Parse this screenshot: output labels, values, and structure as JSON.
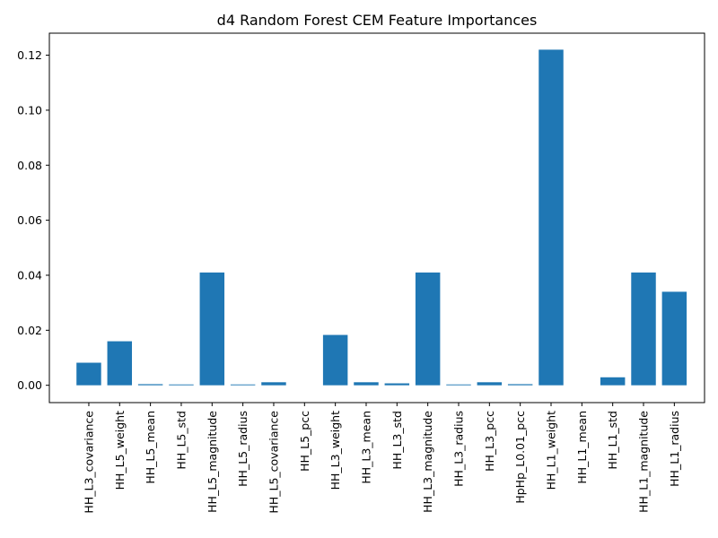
{
  "chart_data": {
    "type": "bar",
    "title": "d4 Random Forest CEM Feature Importances",
    "xlabel": "",
    "ylabel": "",
    "categories": [
      "HH_L3_covariance",
      "HH_L5_weight",
      "HH_L5_mean",
      "HH_L5_std",
      "HH_L5_magnitude",
      "HH_L5_radius",
      "HH_L5_covariance",
      "HH_L5_pcc",
      "HH_L3_weight",
      "HH_L3_mean",
      "HH_L3_std",
      "HH_L3_magnitude",
      "HH_L3_radius",
      "HH_L3_pcc",
      "HpHp_L0.01_pcc",
      "HH_L1_weight",
      "HH_L1_mean",
      "HH_L1_std",
      "HH_L1_magnitude",
      "HH_L1_radius"
    ],
    "values": [
      0.0082,
      0.016,
      0.0004,
      0.0003,
      0.041,
      0.0003,
      0.0011,
      0.0,
      0.0183,
      0.0011,
      0.0007,
      0.041,
      0.0003,
      0.0011,
      0.0004,
      0.122,
      0.0,
      0.0029,
      0.041,
      0.034
    ],
    "yticks": [
      0.0,
      0.02,
      0.04,
      0.06,
      0.08,
      0.1,
      0.12
    ],
    "ytick_labels": [
      "0.00",
      "0.02",
      "0.04",
      "0.06",
      "0.08",
      "0.10",
      "0.12"
    ],
    "ylim": [
      -0.0063,
      0.128
    ],
    "grid": false,
    "bar_color": "#1f77b4"
  }
}
